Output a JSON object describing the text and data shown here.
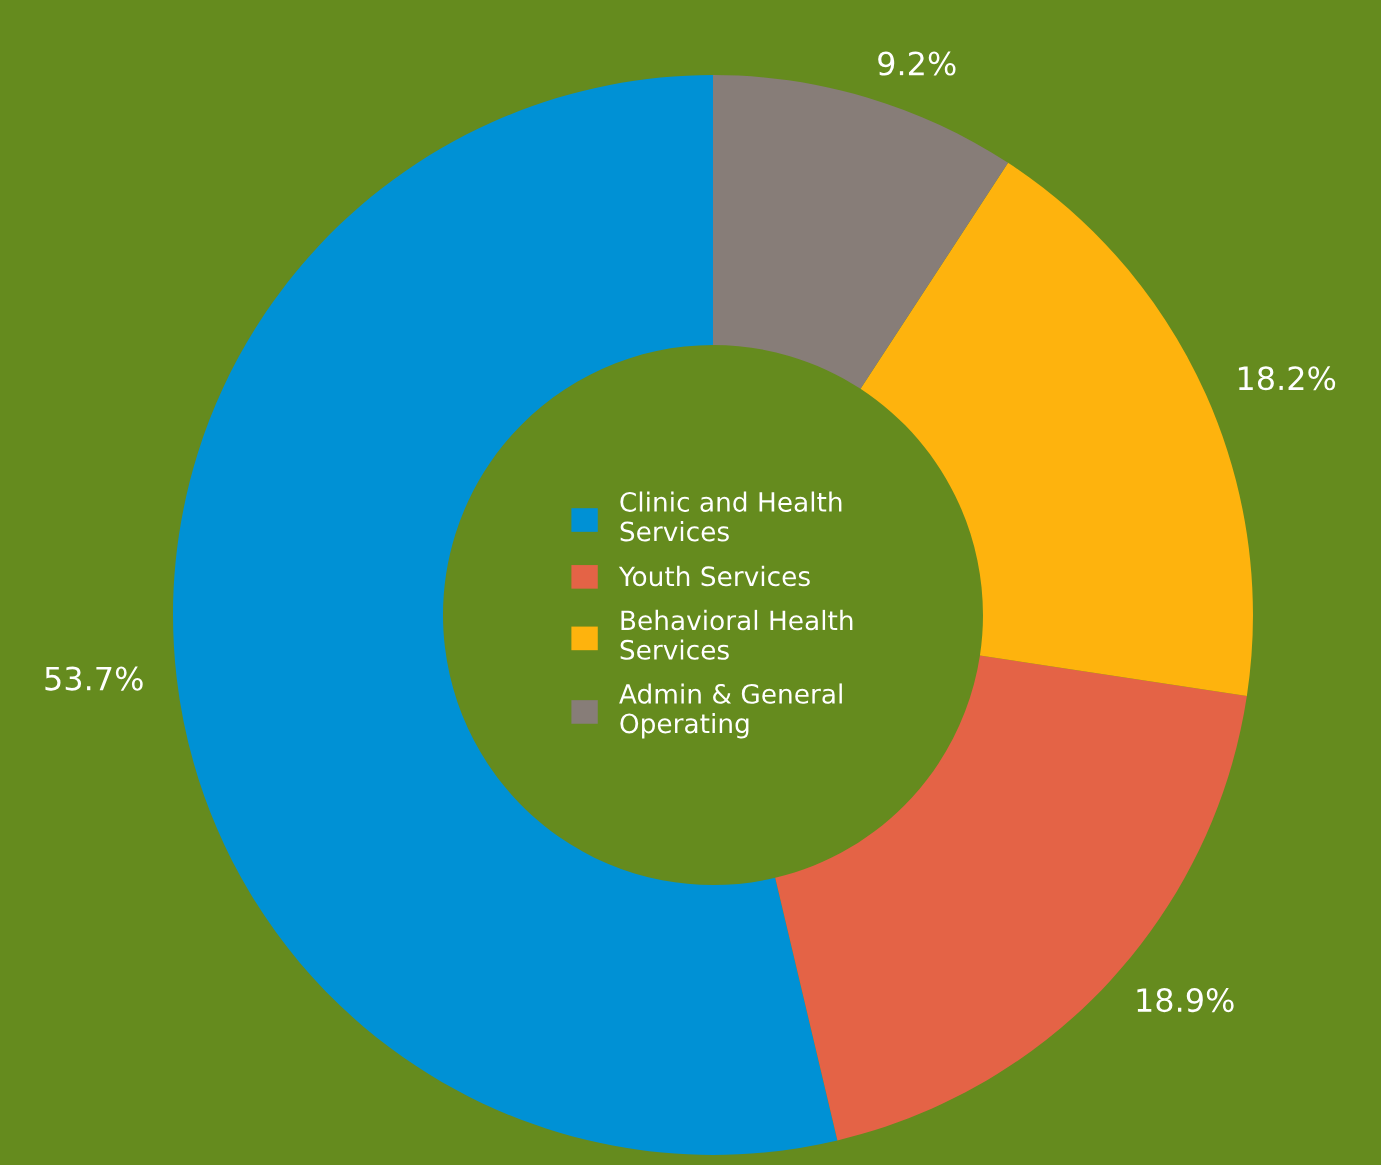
{
  "chart_data": {
    "type": "donut",
    "categories": [
      "Clinic and Health\nServices",
      "Youth Services",
      "Behavioral Health\nServices",
      "Admin & General\nOperating"
    ],
    "values": [
      53.7,
      18.9,
      18.2,
      9.2
    ],
    "colors": [
      "#0091d5",
      "#e46346",
      "#feb30d",
      "#877d78"
    ],
    "value_labels": [
      "53.7%",
      "18.9%",
      "18.2%",
      "9.2%"
    ],
    "legend": "center"
  }
}
